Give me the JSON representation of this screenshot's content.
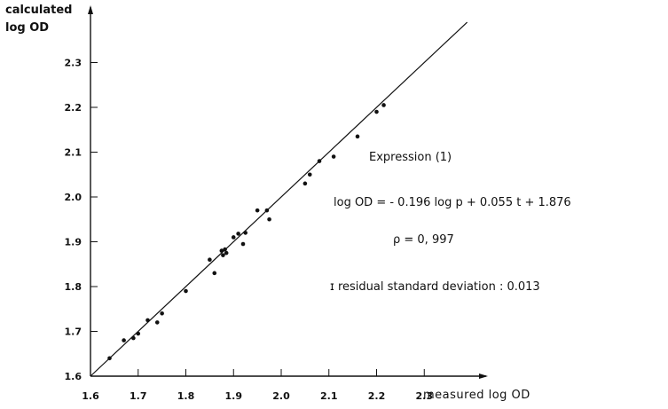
{
  "chart_data": {
    "type": "scatter",
    "title": "",
    "ylabel_line1": "calculated",
    "ylabel_line2": "log OD",
    "xlabel": "measured  log OD",
    "xlim": [
      1.6,
      2.4
    ],
    "ylim": [
      1.6,
      2.4
    ],
    "x_ticks": [
      "1.6",
      "1.7",
      "1.8",
      "1.9",
      "2.0",
      "2.1",
      "2.2",
      "2.3"
    ],
    "y_ticks": [
      "1.6",
      "1.7",
      "1.8",
      "1.9",
      "2.0",
      "2.1",
      "2.2",
      "2.3"
    ],
    "grid": false,
    "reference_line": {
      "from": [
        1.6,
        1.6
      ],
      "to": [
        2.39,
        2.39
      ]
    },
    "points": [
      {
        "x": 1.64,
        "y": 1.64
      },
      {
        "x": 1.67,
        "y": 1.68
      },
      {
        "x": 1.69,
        "y": 1.685
      },
      {
        "x": 1.7,
        "y": 1.695
      },
      {
        "x": 1.72,
        "y": 1.725
      },
      {
        "x": 1.74,
        "y": 1.72
      },
      {
        "x": 1.75,
        "y": 1.74
      },
      {
        "x": 1.8,
        "y": 1.79
      },
      {
        "x": 1.85,
        "y": 1.86
      },
      {
        "x": 1.86,
        "y": 1.83
      },
      {
        "x": 1.875,
        "y": 1.88
      },
      {
        "x": 1.878,
        "y": 1.87
      },
      {
        "x": 1.882,
        "y": 1.883
      },
      {
        "x": 1.885,
        "y": 1.875
      },
      {
        "x": 1.9,
        "y": 1.91
      },
      {
        "x": 1.91,
        "y": 1.918
      },
      {
        "x": 1.92,
        "y": 1.895
      },
      {
        "x": 1.925,
        "y": 1.92
      },
      {
        "x": 1.95,
        "y": 1.97
      },
      {
        "x": 1.97,
        "y": 1.97
      },
      {
        "x": 1.975,
        "y": 1.95
      },
      {
        "x": 2.05,
        "y": 2.03
      },
      {
        "x": 2.06,
        "y": 2.05
      },
      {
        "x": 2.08,
        "y": 2.08
      },
      {
        "x": 2.11,
        "y": 2.09
      },
      {
        "x": 2.16,
        "y": 2.135
      },
      {
        "x": 2.2,
        "y": 2.19
      },
      {
        "x": 2.215,
        "y": 2.205
      }
    ],
    "annotations": {
      "expression_title": "Expression (1)",
      "equation": "log OD = - 0.196  log p + 0.055  t + 1.876",
      "correlation": "ρ = 0, 997",
      "residual": "ɪ  residual  standard  deviation : 0.013"
    }
  }
}
